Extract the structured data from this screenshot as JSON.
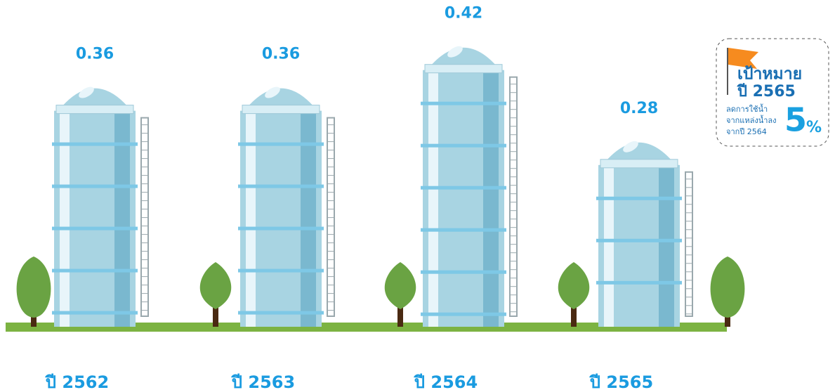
{
  "chart_data": {
    "type": "bar",
    "categories": [
      "ปี 2562",
      "ปี 2563",
      "ปี 2564",
      "ปี 2565"
    ],
    "values": [
      0.36,
      0.36,
      0.42,
      0.28
    ],
    "color": "#a8d4e2",
    "target": {
      "title": "เป้าหมาย",
      "year": "ปี 2565",
      "description": [
        "ลดการใช้น้ำ",
        "จากแหล่งน้ำลง",
        "จากปี 2564"
      ],
      "value": 5,
      "unit": "%"
    }
  }
}
